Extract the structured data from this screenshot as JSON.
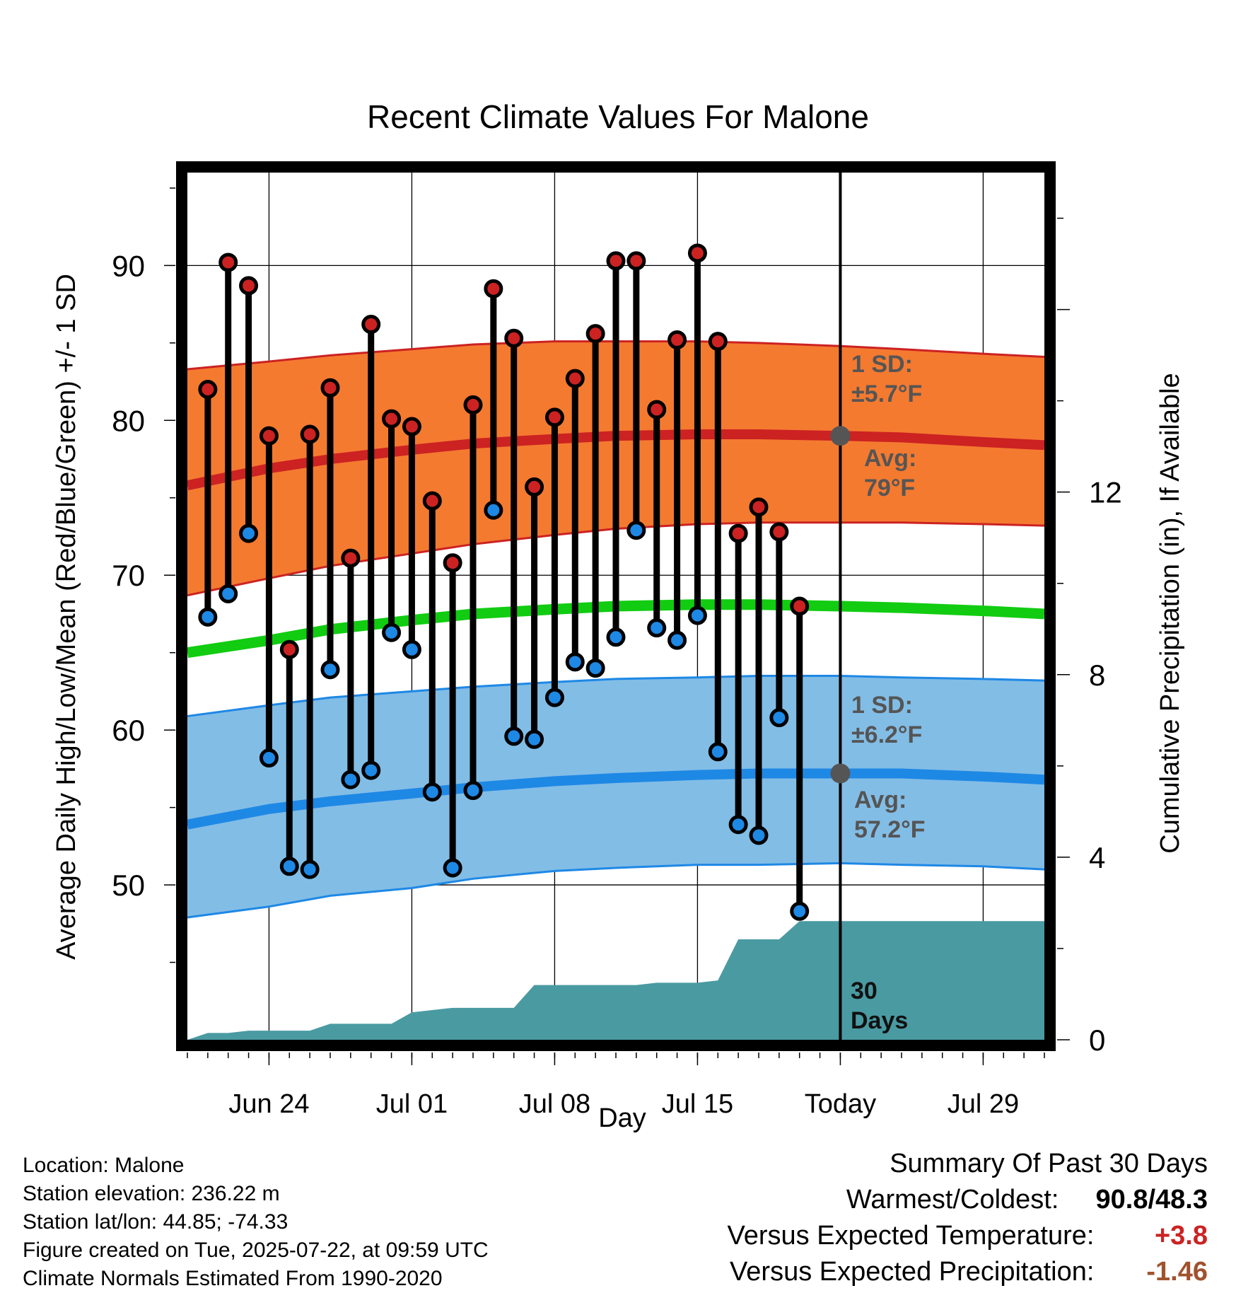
{
  "title": "Recent Climate Values For Malone",
  "chart_data": {
    "type": "line",
    "title": "Recent Climate Values For Malone",
    "xlabel": "Day",
    "ylabel": "Average Daily High/Low/Mean (Red/Blue/Green) +/- 1 SD",
    "y2label": "Cumulative Precipitation (in), If Available",
    "ylim": [
      40,
      96
    ],
    "y2lim": [
      0,
      19
    ],
    "yticks": [
      50,
      60,
      70,
      80,
      90
    ],
    "y2ticks": [
      0,
      4,
      8,
      12
    ],
    "xlim": [
      "2025-06-20",
      "2025-08-01"
    ],
    "xticks": [
      {
        "date": "2025-06-24",
        "label": "Jun 24"
      },
      {
        "date": "2025-07-01",
        "label": "Jul 01"
      },
      {
        "date": "2025-07-08",
        "label": "Jul 08"
      },
      {
        "date": "2025-07-15",
        "label": "Jul 15"
      },
      {
        "date": "2025-07-22",
        "label": "Today"
      },
      {
        "date": "2025-07-29",
        "label": "Jul 29"
      }
    ],
    "grid": true,
    "today": "2025-07-22",
    "colors": {
      "high": "#cc2222",
      "high_band": "#f47a30",
      "low": "#1e88e5",
      "low_band": "#82bde6",
      "mean": "#11cc11",
      "precip": "#4a9aa2",
      "annotation": "#555555"
    },
    "normals": {
      "x": [
        "2025-06-20",
        "2025-06-24",
        "2025-06-27",
        "2025-07-01",
        "2025-07-04",
        "2025-07-08",
        "2025-07-11",
        "2025-07-15",
        "2025-07-18",
        "2025-07-22",
        "2025-07-25",
        "2025-07-29",
        "2025-08-01"
      ],
      "high_avg": [
        75.8,
        76.9,
        77.5,
        78.1,
        78.5,
        78.8,
        79.0,
        79.1,
        79.1,
        79.0,
        78.9,
        78.6,
        78.4
      ],
      "high_upper": [
        83.3,
        83.8,
        84.2,
        84.6,
        84.9,
        85.1,
        85.1,
        85.1,
        85.0,
        84.8,
        84.6,
        84.3,
        84.1
      ],
      "high_lower": [
        68.7,
        69.8,
        70.6,
        71.4,
        72.0,
        72.6,
        73.0,
        73.3,
        73.4,
        73.4,
        73.4,
        73.3,
        73.2
      ],
      "mean_avg": [
        65.0,
        65.8,
        66.5,
        67.1,
        67.5,
        67.8,
        68.0,
        68.1,
        68.1,
        68.0,
        67.9,
        67.7,
        67.5
      ],
      "low_avg": [
        53.9,
        54.9,
        55.4,
        55.9,
        56.3,
        56.7,
        56.9,
        57.1,
        57.2,
        57.2,
        57.2,
        57.0,
        56.8
      ],
      "low_upper": [
        60.9,
        61.6,
        62.1,
        62.5,
        62.8,
        63.1,
        63.3,
        63.4,
        63.5,
        63.5,
        63.4,
        63.3,
        63.2
      ],
      "low_lower": [
        47.9,
        48.6,
        49.3,
        49.8,
        50.4,
        50.9,
        51.1,
        51.3,
        51.3,
        51.4,
        51.3,
        51.2,
        51.0
      ]
    },
    "daily": {
      "x": [
        "2025-06-21",
        "2025-06-22",
        "2025-06-23",
        "2025-06-24",
        "2025-06-25",
        "2025-06-26",
        "2025-06-27",
        "2025-06-28",
        "2025-06-29",
        "2025-06-30",
        "2025-07-01",
        "2025-07-02",
        "2025-07-03",
        "2025-07-04",
        "2025-07-05",
        "2025-07-06",
        "2025-07-07",
        "2025-07-08",
        "2025-07-09",
        "2025-07-10",
        "2025-07-11",
        "2025-07-12",
        "2025-07-13",
        "2025-07-14",
        "2025-07-15",
        "2025-07-16",
        "2025-07-17",
        "2025-07-18",
        "2025-07-19",
        "2025-07-20",
        "2025-07-21"
      ],
      "high": [
        82.0,
        90.2,
        88.7,
        79.0,
        65.2,
        79.1,
        82.1,
        71.1,
        86.2,
        80.1,
        79.6,
        74.8,
        70.8,
        81.0,
        88.5,
        85.3,
        75.7,
        80.2,
        82.7,
        85.6,
        90.3,
        90.3,
        80.7,
        85.2,
        90.8,
        85.1,
        72.7,
        74.4,
        72.8,
        68.0,
        null
      ],
      "low": [
        67.3,
        68.8,
        72.7,
        58.2,
        51.2,
        51.0,
        63.9,
        56.8,
        57.4,
        66.3,
        65.2,
        56.0,
        51.1,
        56.1,
        74.2,
        59.6,
        59.4,
        62.1,
        64.4,
        64.0,
        66.0,
        72.9,
        66.6,
        65.8,
        67.4,
        58.6,
        53.9,
        53.2,
        60.8,
        48.3,
        null
      ]
    },
    "precip": {
      "x": [
        "2025-06-20",
        "2025-06-21",
        "2025-06-22",
        "2025-06-23",
        "2025-06-24",
        "2025-06-25",
        "2025-06-26",
        "2025-06-27",
        "2025-06-28",
        "2025-06-29",
        "2025-06-30",
        "2025-07-01",
        "2025-07-02",
        "2025-07-03",
        "2025-07-04",
        "2025-07-05",
        "2025-07-06",
        "2025-07-07",
        "2025-07-08",
        "2025-07-09",
        "2025-07-10",
        "2025-07-11",
        "2025-07-12",
        "2025-07-13",
        "2025-07-14",
        "2025-07-15",
        "2025-07-16",
        "2025-07-17",
        "2025-07-18",
        "2025-07-19",
        "2025-07-20",
        "2025-07-21",
        "2025-07-22",
        "2025-08-01"
      ],
      "y": [
        0.0,
        0.15,
        0.15,
        0.2,
        0.2,
        0.2,
        0.2,
        0.35,
        0.35,
        0.35,
        0.35,
        0.6,
        0.65,
        0.7,
        0.7,
        0.7,
        0.7,
        1.2,
        1.2,
        1.2,
        1.2,
        1.2,
        1.2,
        1.25,
        1.25,
        1.25,
        1.3,
        2.2,
        2.2,
        2.2,
        2.6,
        2.6,
        2.6,
        2.6
      ]
    }
  },
  "annotations": {
    "high_sd_label": "1 SD:",
    "high_sd_value": "±5.7°F",
    "high_avg_label": "Avg:",
    "high_avg_value": "79°F",
    "low_sd_label": "1 SD:",
    "low_sd_value": "±6.2°F",
    "low_avg_label": "Avg:",
    "low_avg_value": "57.2°F",
    "precip_period_num": "30",
    "precip_period_unit": "Days"
  },
  "meta": {
    "location": "Location: Malone",
    "elevation": "Station elevation: 236.22 m",
    "latlon": "Station lat/lon: 44.85; -74.33",
    "created": "Figure created on Tue, 2025-07-22, at 09:59 UTC",
    "normals": "Climate Normals Estimated From 1990-2020"
  },
  "summary": {
    "heading": "Summary Of Past 30 Days",
    "warmest_coldest_label": "Warmest/Coldest:",
    "warmest": "90.8",
    "separator": "/",
    "coldest": "48.3",
    "temp_label": "Versus Expected Temperature:",
    "temp_value": "+3.8",
    "temp_color": "#cc2222",
    "precip_label": "Versus Expected Precipitation:",
    "precip_value": "-1.46",
    "precip_color": "#a0522d"
  }
}
